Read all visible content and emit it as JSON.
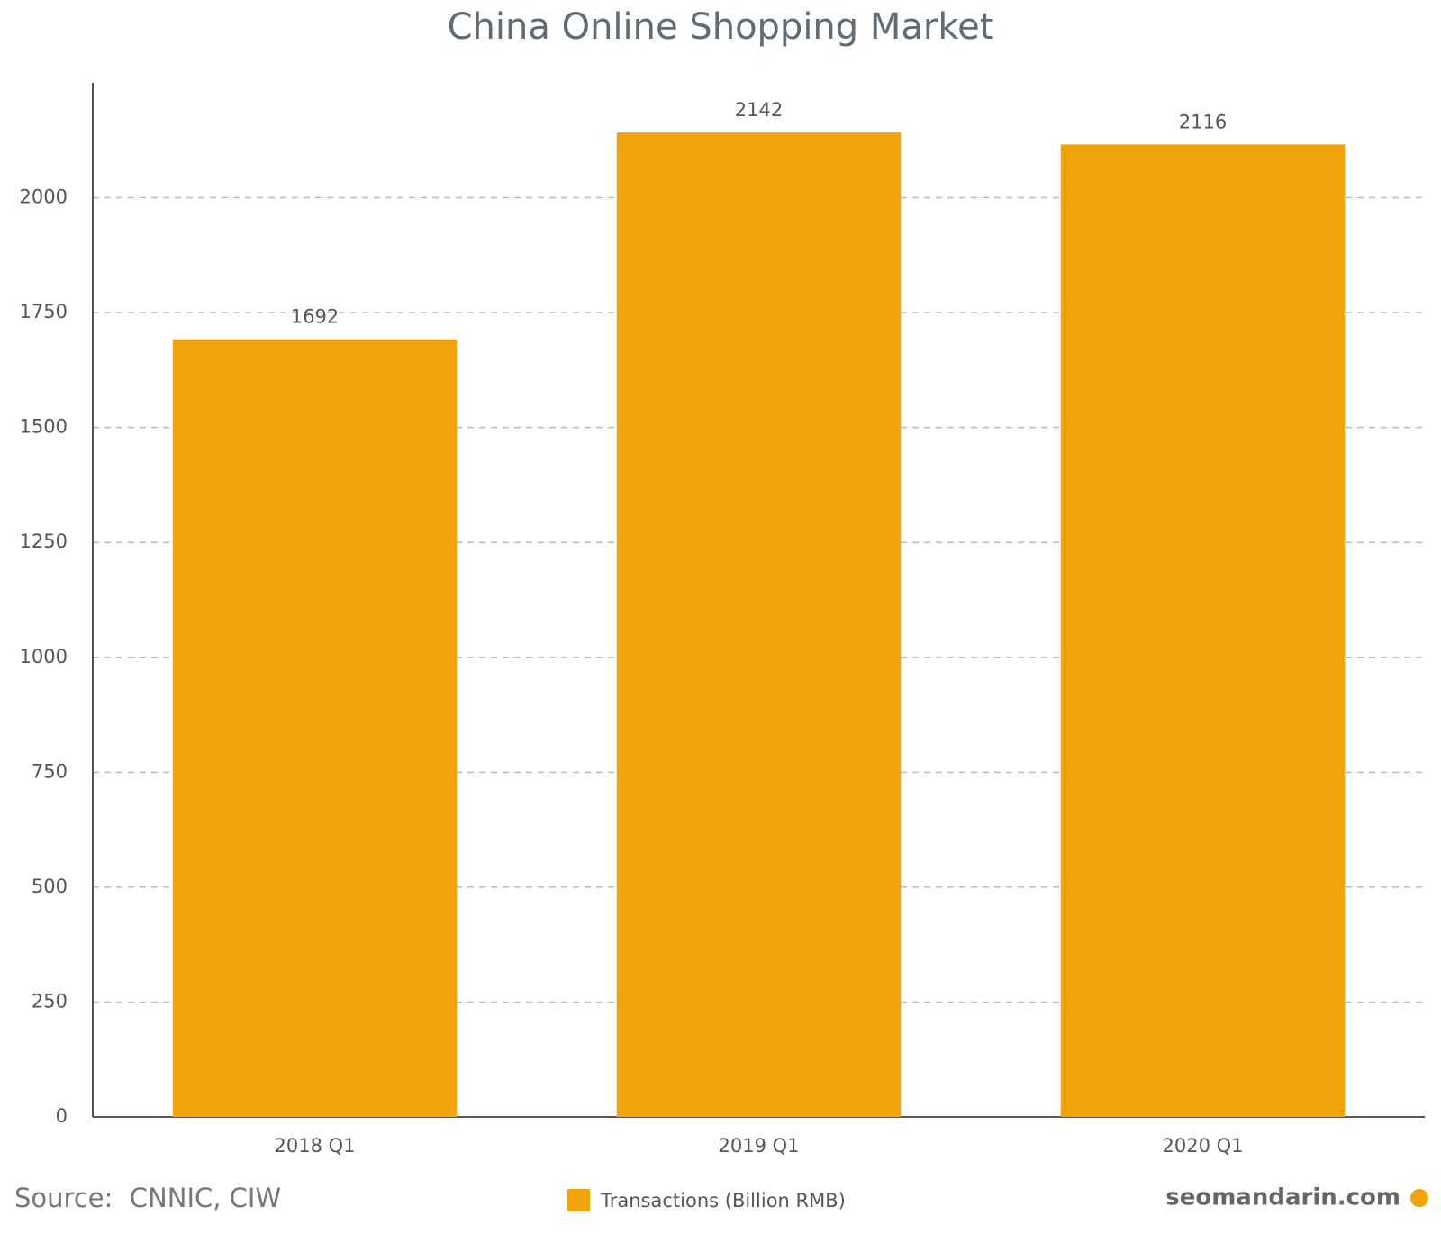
{
  "chart_data": {
    "type": "bar",
    "title": "China Online Shopping Market",
    "categories": [
      "2018 Q1",
      "2019 Q1",
      "2020 Q1"
    ],
    "series": [
      {
        "name": "Transactions (Billion RMB)",
        "color": "#f0a30a",
        "values": [
          1692,
          2142,
          2116
        ]
      }
    ],
    "ylim": [
      0,
      2250
    ],
    "yticks": [
      0,
      250,
      500,
      750,
      1000,
      1250,
      1500,
      1750,
      2000
    ],
    "grid": true,
    "source": "Source:  CNNIC, CIW",
    "watermark": "seomandarin.com"
  }
}
